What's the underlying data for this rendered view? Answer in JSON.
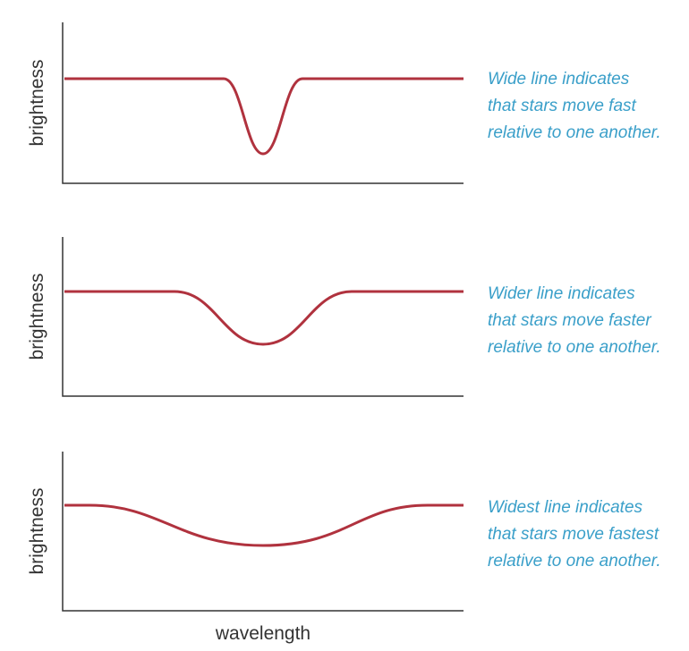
{
  "panels": [
    {
      "y_label": "brightness",
      "caption": [
        "Wide line indicates",
        "that stars move fast",
        "relative to one another."
      ]
    },
    {
      "y_label": "brightness",
      "caption": [
        "Wider line indicates",
        "that stars move faster",
        "relative to one another."
      ]
    },
    {
      "y_label": "brightness",
      "caption": [
        "Widest line indicates",
        "that stars move fastest",
        "relative to one another."
      ]
    }
  ],
  "x_label": "wavelength"
}
